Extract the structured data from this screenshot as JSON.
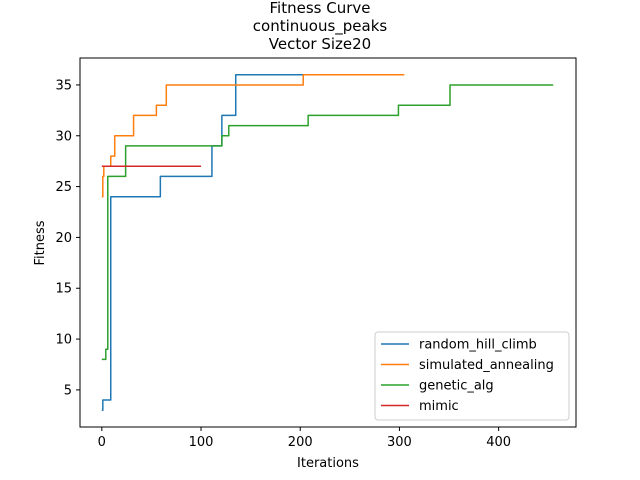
{
  "chart_data": {
    "type": "line",
    "title_lines": [
      "Fitness Curve",
      "continuous_peaks",
      "Vector Size20"
    ],
    "xlabel": "Iterations",
    "ylabel": "Fitness",
    "xlim": [
      -22,
      478
    ],
    "ylim": [
      1.35,
      37.65
    ],
    "xticks": [
      0,
      100,
      200,
      300,
      400
    ],
    "yticks": [
      5,
      10,
      15,
      20,
      25,
      30,
      35
    ],
    "legend_position": "lower-right",
    "series": [
      {
        "name": "random_hill_climb",
        "color": "#1f77b4",
        "x": [
          0,
          1,
          1,
          9,
          9,
          10,
          10,
          59,
          59,
          111,
          111,
          121,
          121,
          133,
          133,
          135,
          135,
          238
        ],
        "y": [
          3,
          3,
          4,
          4,
          24,
          24,
          24,
          24,
          26,
          26,
          29,
          29,
          32,
          32,
          32,
          32,
          36,
          36
        ]
      },
      {
        "name": "simulated_annealing",
        "color": "#ff7f0e",
        "x": [
          0,
          1,
          1,
          2,
          2,
          6,
          6,
          9,
          9,
          11,
          11,
          13,
          13,
          32,
          32,
          55,
          55,
          65,
          65,
          67,
          67,
          203,
          203,
          305
        ],
        "y": [
          24,
          24,
          26,
          26,
          27,
          27,
          27,
          27,
          28,
          28,
          28,
          28,
          30,
          30,
          32,
          32,
          33,
          33,
          35,
          35,
          35,
          35,
          36,
          36
        ]
      },
      {
        "name": "genetic_alg",
        "color": "#2ca02c",
        "x": [
          0,
          4,
          4,
          6,
          6,
          8,
          8,
          24,
          24,
          121,
          121,
          126,
          126,
          128,
          128,
          208,
          208,
          299,
          299,
          351,
          351,
          455
        ],
        "y": [
          8,
          8,
          9,
          9,
          26,
          26,
          26,
          26,
          29,
          29,
          30,
          30,
          30,
          30,
          31,
          31,
          32,
          32,
          33,
          33,
          35,
          35
        ]
      },
      {
        "name": "mimic",
        "color": "#d62728",
        "x": [
          0,
          100
        ],
        "y": [
          27,
          27
        ]
      }
    ]
  }
}
